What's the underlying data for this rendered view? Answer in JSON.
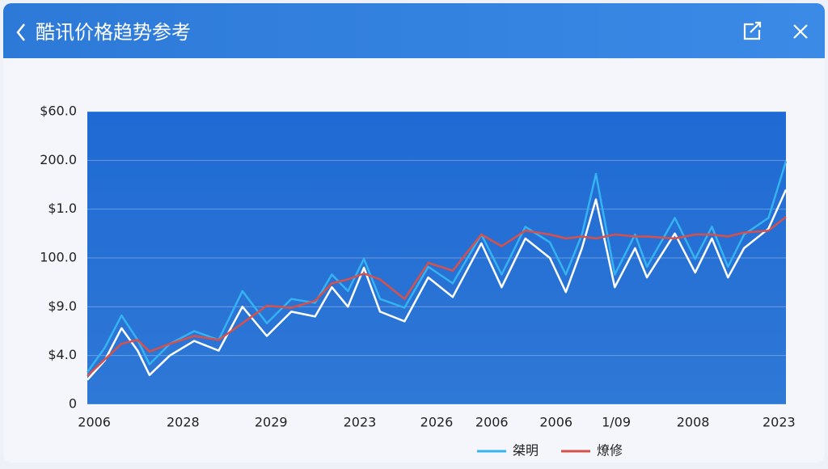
{
  "header": {
    "title": "酷讯价格趋势参考"
  },
  "chart_data": {
    "type": "line",
    "x": [
      0,
      2.5,
      4.9,
      7.2,
      8.9,
      11.8,
      15.3,
      18.8,
      22.2,
      25.7,
      29.2,
      32.6,
      35,
      37.3,
      39.6,
      41.9,
      45.4,
      48.8,
      52.3,
      56.4,
      59.3,
      62.7,
      66.2,
      68.5,
      70.8,
      72.8,
      75.5,
      78.4,
      80.1,
      84.1,
      87,
      89.4,
      91.7,
      94,
      97.5,
      100
    ],
    "series": [
      {
        "name": "桀明",
        "color": "#35b3f0",
        "values": [
          33,
          58,
          91,
          66,
          41,
          62,
          75,
          66,
          116,
          83,
          108,
          104,
          133,
          116,
          149,
          108,
          99,
          141,
          124,
          174,
          133,
          182,
          166,
          133,
          174,
          236,
          133,
          174,
          141,
          191,
          149,
          182,
          141,
          174,
          191,
          249
        ]
      },
      {
        "color": "#ffffff",
        "values": [
          25,
          45,
          78,
          55,
          30,
          50,
          65,
          55,
          100,
          70,
          95,
          90,
          120,
          100,
          140,
          95,
          85,
          130,
          110,
          165,
          120,
          170,
          150,
          115,
          160,
          210,
          120,
          160,
          130,
          175,
          135,
          170,
          130,
          160,
          180,
          220
        ]
      },
      {
        "name": "燎修",
        "color": "#d8504a",
        "values": [
          29,
          46,
          62,
          66,
          54,
          62,
          70,
          66,
          83,
          101,
          99,
          106,
          124,
          128,
          134,
          128,
          108,
          145,
          137,
          174,
          162,
          178,
          174,
          170,
          172,
          170,
          174,
          172,
          172,
          170,
          174,
          174,
          172,
          176,
          178,
          192
        ]
      }
    ],
    "xlim": [
      0,
      100
    ],
    "xticks": [
      {
        "value": 1,
        "label": "2006"
      },
      {
        "value": 13.7,
        "label": "2028"
      },
      {
        "value": 26.3,
        "label": "2029"
      },
      {
        "value": 39,
        "label": "2023"
      },
      {
        "value": 50,
        "label": "2026"
      },
      {
        "value": 57.9,
        "label": "2006"
      },
      {
        "value": 67.1,
        "label": "2006"
      },
      {
        "value": 75.7,
        "label": "1/09"
      },
      {
        "value": 86.7,
        "label": "2008"
      },
      {
        "value": 99,
        "label": "2023"
      }
    ],
    "ylim": [
      0,
      300
    ],
    "yticks": [
      0,
      {
        "value": 50,
        "label": "$4.0"
      },
      {
        "value": 100,
        "label": "$9.0"
      },
      {
        "value": 150,
        "label": "100.0"
      },
      {
        "value": 200,
        "label": "$1.0"
      },
      {
        "value": 250,
        "label": "200.0"
      },
      {
        "value": 300,
        "label": "$60.0"
      }
    ],
    "grid": true
  }
}
